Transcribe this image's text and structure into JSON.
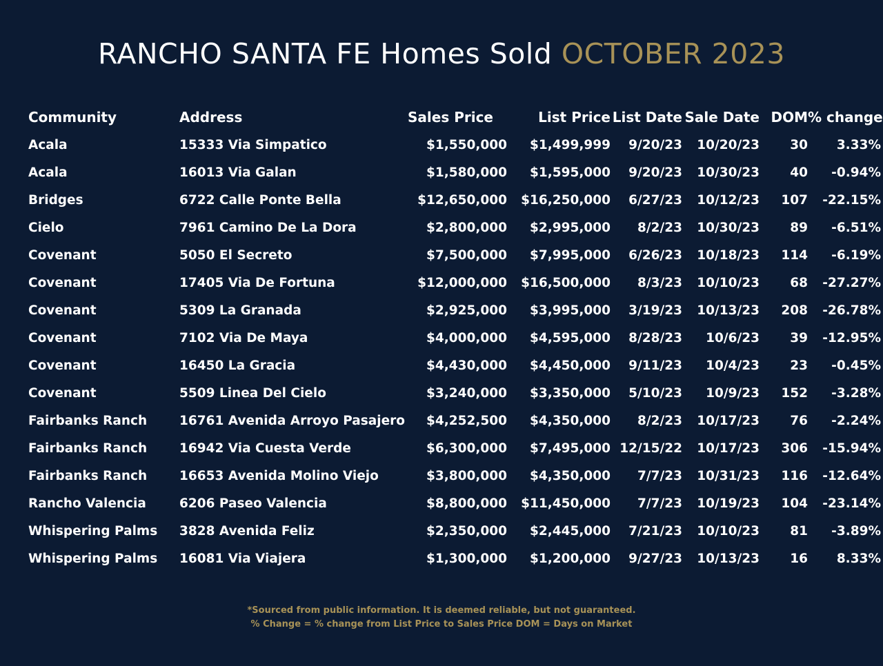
{
  "title": {
    "main": "RANCHO SANTA FE Homes Sold",
    "accent": "OCTOBER 2023",
    "accent_color": "#a89257"
  },
  "background_color": "#0c1b33",
  "table": {
    "headers": [
      "Community",
      "Address",
      "Sales Price",
      "List Price",
      "List Date",
      "Sale Date",
      "DOM",
      "% change"
    ],
    "rows": [
      [
        "Acala",
        "15333 Via Simpatico",
        "$1,550,000",
        "$1,499,999",
        "9/20/23",
        "10/20/23",
        "30",
        "3.33%"
      ],
      [
        "Acala",
        "16013 Via Galan",
        "$1,580,000",
        "$1,595,000",
        "9/20/23",
        "10/30/23",
        "40",
        "-0.94%"
      ],
      [
        "Bridges",
        "6722 Calle Ponte Bella",
        "$12,650,000",
        "$16,250,000",
        "6/27/23",
        "10/12/23",
        "107",
        "-22.15%"
      ],
      [
        "Cielo",
        "7961 Camino De La Dora",
        "$2,800,000",
        "$2,995,000",
        "8/2/23",
        "10/30/23",
        "89",
        "-6.51%"
      ],
      [
        "Covenant",
        "5050 El Secreto",
        "$7,500,000",
        "$7,995,000",
        "6/26/23",
        "10/18/23",
        "114",
        "-6.19%"
      ],
      [
        "Covenant",
        "17405 Via De Fortuna",
        "$12,000,000",
        "$16,500,000",
        "8/3/23",
        "10/10/23",
        "68",
        "-27.27%"
      ],
      [
        "Covenant",
        "5309 La Granada",
        "$2,925,000",
        "$3,995,000",
        "3/19/23",
        "10/13/23",
        "208",
        "-26.78%"
      ],
      [
        "Covenant",
        "7102 Via De Maya",
        "$4,000,000",
        "$4,595,000",
        "8/28/23",
        "10/6/23",
        "39",
        "-12.95%"
      ],
      [
        "Covenant",
        "16450 La Gracia",
        "$4,430,000",
        "$4,450,000",
        "9/11/23",
        "10/4/23",
        "23",
        "-0.45%"
      ],
      [
        "Covenant",
        "5509 Linea Del Cielo",
        "$3,240,000",
        "$3,350,000",
        "5/10/23",
        "10/9/23",
        "152",
        "-3.28%"
      ],
      [
        "Fairbanks Ranch",
        "16761 Avenida Arroyo Pasajero",
        "$4,252,500",
        "$4,350,000",
        "8/2/23",
        "10/17/23",
        "76",
        "-2.24%"
      ],
      [
        "Fairbanks Ranch",
        "16942 Via Cuesta Verde",
        "$6,300,000",
        "$7,495,000",
        "12/15/22",
        "10/17/23",
        "306",
        "-15.94%"
      ],
      [
        "Fairbanks Ranch",
        "16653 Avenida Molino Viejo",
        "$3,800,000",
        "$4,350,000",
        "7/7/23",
        "10/31/23",
        "116",
        "-12.64%"
      ],
      [
        "Rancho Valencia",
        "6206 Paseo Valencia",
        "$8,800,000",
        "$11,450,000",
        "7/7/23",
        "10/19/23",
        "104",
        "-23.14%"
      ],
      [
        "Whispering Palms",
        "3828 Avenida Feliz",
        "$2,350,000",
        "$2,445,000",
        "7/21/23",
        "10/10/23",
        "81",
        "-3.89%"
      ],
      [
        "Whispering Palms",
        "16081 Via Viajera",
        "$1,300,000",
        "$1,200,000",
        "9/27/23",
        "10/13/23",
        "16",
        "8.33%"
      ]
    ]
  },
  "footnote": {
    "line1": "*Sourced from public information. It is deemed reliable, but not guaranteed.",
    "line2": "% Change = % change from List Price to Sales Price DOM = Days on Market"
  }
}
